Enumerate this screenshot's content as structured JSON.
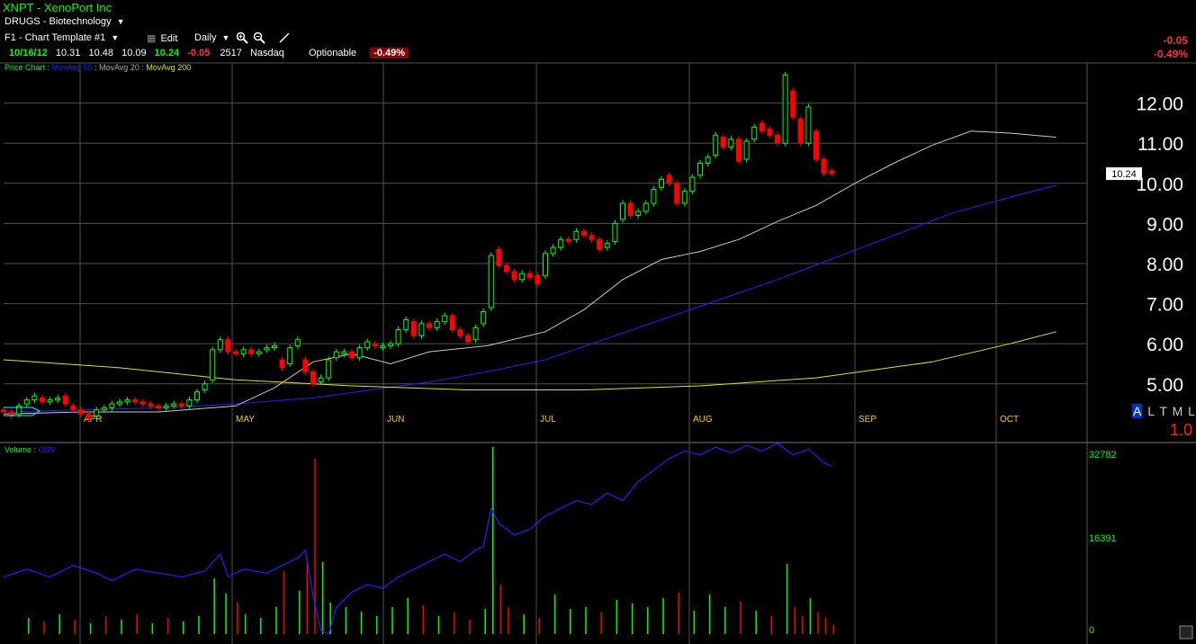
{
  "header": {
    "symbol_title": "XNPT - XenoPort Inc",
    "watchlist": "DRUGS - Biotechnology",
    "template": "F1 - Chart Template #1",
    "edit_label": "Edit",
    "period_label": "Daily",
    "quote": {
      "date": "10/16/12",
      "open": "10.31",
      "high": "10.48",
      "low": "10.09",
      "last": "10.24",
      "change": "-0.05",
      "volume": "2517",
      "exchange": "Nasdaq",
      "optionable": "Optionable",
      "change_pct": "-0.49%"
    },
    "right_change": "-0.05",
    "right_change_pct": "-0.49%"
  },
  "price_panel": {
    "legend_price_chart": "Price Chart",
    "legend_sep": ":",
    "legend_ma50": "MovAvg 50",
    "legend_ma20": "MovAvg 20",
    "legend_ma200": "MovAvg 200",
    "price_tag": "10.24",
    "mode_buttons": [
      "A",
      "L",
      "T",
      "M",
      "L"
    ],
    "scale_factor": "1.0"
  },
  "volume_panel": {
    "legend_volume": "Volume",
    "legend_sep": ":",
    "legend_obv": "OBV"
  },
  "colors": {
    "up": "#00ff00",
    "down": "#ff0000",
    "ma50": "#2020ff",
    "ma20": "#c8c8c8",
    "ma200": "#e6e600",
    "grid": "#505050",
    "month_label": "#ffcc00",
    "title_green": "#00ff00"
  },
  "chart_data": [
    {
      "type": "line",
      "title": "XNPT - XenoPort Inc",
      "yticks": [
        "5.00",
        "6.00",
        "7.00",
        "8.00",
        "9.00",
        "10.00",
        "11.00",
        "12.00"
      ],
      "ylim": [
        4.3,
        13.0
      ],
      "months": [
        "APR",
        "MAY",
        "JUN",
        "JUL",
        "AUG",
        "SEP",
        "OCT"
      ],
      "grid": true,
      "series": [
        {
          "name": "MovAvg 50",
          "points": [
            [
              0,
              4.3
            ],
            [
              20,
              4.35
            ],
            [
              40,
              4.4
            ],
            [
              60,
              4.5
            ],
            [
              80,
              4.65
            ],
            [
              95,
              4.85
            ],
            [
              110,
              5.05
            ],
            [
              125,
              5.3
            ],
            [
              140,
              5.6
            ],
            [
              155,
              6.1
            ],
            [
              170,
              6.6
            ],
            [
              185,
              7.1
            ],
            [
              200,
              7.6
            ],
            [
              215,
              8.15
            ],
            [
              230,
              8.7
            ],
            [
              245,
              9.25
            ],
            [
              260,
              9.65
            ],
            [
              272,
              9.95
            ]
          ]
        },
        {
          "name": "MovAvg 20",
          "points": [
            [
              0,
              4.25
            ],
            [
              20,
              4.3
            ],
            [
              40,
              4.3
            ],
            [
              60,
              4.45
            ],
            [
              70,
              4.9
            ],
            [
              80,
              5.55
            ],
            [
              90,
              5.75
            ],
            [
              100,
              5.5
            ],
            [
              110,
              5.8
            ],
            [
              125,
              5.95
            ],
            [
              140,
              6.3
            ],
            [
              150,
              6.85
            ],
            [
              160,
              7.6
            ],
            [
              170,
              8.1
            ],
            [
              180,
              8.3
            ],
            [
              190,
              8.6
            ],
            [
              200,
              9.05
            ],
            [
              210,
              9.45
            ],
            [
              220,
              10.0
            ],
            [
              230,
              10.5
            ],
            [
              240,
              10.95
            ],
            [
              250,
              11.3
            ],
            [
              260,
              11.25
            ],
            [
              272,
              11.15
            ]
          ]
        },
        {
          "name": "MovAvg 200",
          "points": [
            [
              0,
              5.6
            ],
            [
              30,
              5.4
            ],
            [
              60,
              5.1
            ],
            [
              90,
              4.95
            ],
            [
              120,
              4.85
            ],
            [
              150,
              4.85
            ],
            [
              180,
              4.95
            ],
            [
              210,
              5.15
            ],
            [
              240,
              5.55
            ],
            [
              260,
              6.0
            ],
            [
              272,
              6.3
            ]
          ]
        }
      ],
      "candles": [
        [
          0,
          4.35,
          4.3
        ],
        [
          2,
          4.3,
          4.2
        ],
        [
          4,
          4.25,
          4.45
        ],
        [
          6,
          4.5,
          4.6
        ],
        [
          8,
          4.6,
          4.7
        ],
        [
          10,
          4.65,
          4.55
        ],
        [
          12,
          4.55,
          4.6
        ],
        [
          14,
          4.6,
          4.65
        ],
        [
          16,
          4.7,
          4.5
        ],
        [
          18,
          4.45,
          4.35
        ],
        [
          20,
          4.35,
          4.25
        ],
        [
          22,
          4.25,
          4.15
        ],
        [
          24,
          4.2,
          4.35
        ],
        [
          26,
          4.35,
          4.4
        ],
        [
          28,
          4.4,
          4.5
        ],
        [
          30,
          4.5,
          4.55
        ],
        [
          32,
          4.55,
          4.6
        ],
        [
          34,
          4.6,
          4.55
        ],
        [
          36,
          4.55,
          4.5
        ],
        [
          38,
          4.5,
          4.45
        ],
        [
          40,
          4.45,
          4.4
        ],
        [
          42,
          4.4,
          4.45
        ],
        [
          44,
          4.45,
          4.5
        ],
        [
          46,
          4.5,
          4.45
        ],
        [
          48,
          4.45,
          4.6
        ],
        [
          50,
          4.6,
          4.8
        ],
        [
          52,
          4.85,
          5.0
        ],
        [
          54,
          5.1,
          5.85
        ],
        [
          56,
          5.85,
          6.1
        ],
        [
          58,
          6.1,
          5.8
        ],
        [
          60,
          5.8,
          5.75
        ],
        [
          62,
          5.75,
          5.85
        ],
        [
          64,
          5.85,
          5.75
        ],
        [
          66,
          5.75,
          5.8
        ],
        [
          68,
          5.85,
          5.9
        ],
        [
          70,
          5.9,
          5.95
        ],
        [
          72,
          5.6,
          5.4
        ],
        [
          74,
          5.5,
          5.9
        ],
        [
          76,
          5.95,
          6.1
        ],
        [
          78,
          5.6,
          5.3
        ],
        [
          80,
          5.3,
          5.0
        ],
        [
          82,
          5.05,
          5.15
        ],
        [
          84,
          5.15,
          5.6
        ],
        [
          86,
          5.65,
          5.8
        ],
        [
          88,
          5.75,
          5.8
        ],
        [
          90,
          5.8,
          5.65
        ],
        [
          92,
          5.65,
          5.9
        ],
        [
          94,
          5.9,
          6.05
        ],
        [
          96,
          6.0,
          5.95
        ],
        [
          98,
          5.9,
          5.95
        ],
        [
          100,
          5.95,
          6.0
        ],
        [
          102,
          6.0,
          6.35
        ],
        [
          104,
          6.35,
          6.6
        ],
        [
          106,
          6.55,
          6.2
        ],
        [
          108,
          6.2,
          6.5
        ],
        [
          110,
          6.5,
          6.4
        ],
        [
          112,
          6.4,
          6.55
        ],
        [
          114,
          6.55,
          6.7
        ],
        [
          116,
          6.7,
          6.35
        ],
        [
          118,
          6.35,
          6.2
        ],
        [
          120,
          6.2,
          6.05
        ],
        [
          122,
          6.1,
          6.4
        ],
        [
          124,
          6.5,
          6.8
        ],
        [
          126,
          6.9,
          8.2
        ],
        [
          128,
          8.35,
          7.95
        ],
        [
          130,
          7.95,
          7.8
        ],
        [
          132,
          7.8,
          7.6
        ],
        [
          134,
          7.6,
          7.75
        ],
        [
          136,
          7.75,
          7.65
        ],
        [
          138,
          7.7,
          7.5
        ],
        [
          140,
          7.7,
          8.25
        ],
        [
          142,
          8.25,
          8.4
        ],
        [
          144,
          8.4,
          8.6
        ],
        [
          146,
          8.6,
          8.55
        ],
        [
          148,
          8.6,
          8.8
        ],
        [
          150,
          8.8,
          8.7
        ],
        [
          152,
          8.7,
          8.6
        ],
        [
          154,
          8.6,
          8.35
        ],
        [
          156,
          8.4,
          8.5
        ],
        [
          158,
          8.55,
          9.0
        ],
        [
          160,
          9.1,
          9.5
        ],
        [
          162,
          9.5,
          9.2
        ],
        [
          164,
          9.2,
          9.3
        ],
        [
          166,
          9.3,
          9.5
        ],
        [
          168,
          9.5,
          9.85
        ],
        [
          170,
          9.9,
          10.1
        ],
        [
          172,
          10.2,
          10.0
        ],
        [
          174,
          10.0,
          9.5
        ],
        [
          176,
          9.5,
          9.8
        ],
        [
          178,
          9.8,
          10.15
        ],
        [
          180,
          10.2,
          10.5
        ],
        [
          182,
          10.5,
          10.65
        ],
        [
          184,
          10.7,
          11.2
        ],
        [
          186,
          11.15,
          10.9
        ],
        [
          188,
          10.9,
          11.1
        ],
        [
          190,
          11.1,
          10.55
        ],
        [
          192,
          10.6,
          11.05
        ],
        [
          194,
          11.1,
          11.4
        ],
        [
          196,
          11.5,
          11.3
        ],
        [
          198,
          11.35,
          11.2
        ],
        [
          200,
          11.2,
          11.0
        ],
        [
          202,
          11.0,
          12.7
        ],
        [
          204,
          12.3,
          11.65
        ],
        [
          206,
          11.6,
          11.0
        ],
        [
          208,
          11.0,
          11.9
        ],
        [
          210,
          11.3,
          10.6
        ],
        [
          212,
          10.6,
          10.25
        ],
        [
          214,
          10.31,
          10.24
        ]
      ]
    },
    {
      "type": "bar",
      "title": "Volume",
      "yticks": [
        "0",
        "16391",
        "32782"
      ],
      "series": [
        {
          "name": "OBV"
        }
      ]
    }
  ]
}
